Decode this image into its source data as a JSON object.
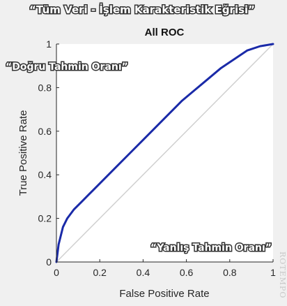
{
  "annotations": {
    "banner": "“Tüm Veri - İşlem Karakteristik Eğrisi”",
    "tpr_label": "“Doğru Tahmin Oranı”",
    "fpr_label": "“Yanlış Tahmin Oranı”"
  },
  "watermark": "ROTEMPO",
  "colors": {
    "page_background": "#f0f0f0",
    "plot_background": "#ffffff",
    "roc_line": "#1a2aa8",
    "diagonal_line": "#d0d0d0",
    "axis": "#262626"
  },
  "chart_data": {
    "type": "line",
    "title": "All ROC",
    "xlabel": "False Positive Rate",
    "ylabel": "True Positive Rate",
    "xlim": [
      0,
      1
    ],
    "ylim": [
      0,
      1
    ],
    "x_ticks": [
      "0",
      "0.2",
      "0.4",
      "0.6",
      "0.8",
      "1"
    ],
    "y_ticks": [
      "0",
      "0.2",
      "0.4",
      "0.6",
      "0.8",
      "1"
    ],
    "grid": false,
    "series": [
      {
        "x": [
          0,
          0.01,
          0.03,
          0.05,
          0.08,
          0.12,
          0.17,
          0.22,
          0.28,
          0.34,
          0.4,
          0.46,
          0.52,
          0.58,
          0.64,
          0.7,
          0.76,
          0.82,
          0.88,
          0.94,
          1.0
        ],
        "y": [
          0,
          0.08,
          0.16,
          0.2,
          0.24,
          0.28,
          0.33,
          0.38,
          0.44,
          0.5,
          0.56,
          0.62,
          0.68,
          0.74,
          0.79,
          0.84,
          0.89,
          0.93,
          0.97,
          0.99,
          1.0
        ]
      },
      {
        "x": [
          0,
          1
        ],
        "y": [
          0,
          1
        ]
      }
    ]
  }
}
